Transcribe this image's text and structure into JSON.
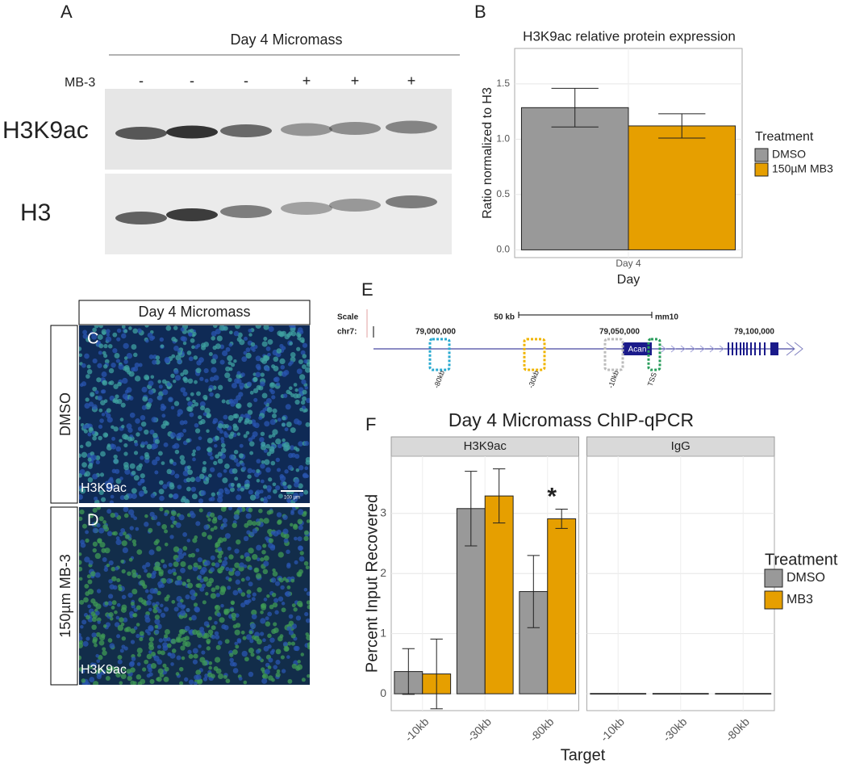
{
  "panel_labels": [
    "A",
    "B",
    "C",
    "D",
    "E",
    "F"
  ],
  "blot": {
    "title": "Day 4 Micromass",
    "treatment_label": "MB-3",
    "lanes": [
      "-",
      "-",
      "-",
      "+",
      "+",
      "+"
    ],
    "bands": [
      "H3K9ac",
      "H3"
    ]
  },
  "imaging": {
    "title": "Day 4 Micromass",
    "scale_bar": "100 µm",
    "rows": [
      {
        "condition": "DMSO",
        "stain": "H3K9ac"
      },
      {
        "condition": "150µm MB-3",
        "stain": "H3K9ac"
      }
    ]
  },
  "browser": {
    "scale_label": "Scale",
    "scale": "50 kb",
    "assembly": "mm10",
    "chrom": "chr7:",
    "positions": [
      "79,000,000",
      "79,050,000",
      "79,100,000"
    ],
    "gene": "Acan",
    "regions": [
      "-80kb",
      "-30kb",
      "-10kb",
      "TSS"
    ]
  },
  "chart_data": [
    {
      "type": "bar",
      "title": "H3K9ac relative protein expression",
      "x_label": "Day",
      "y_label": "Ratio normalized to H3",
      "legend_title": "Treatment",
      "categories": [
        "Day 4"
      ],
      "series": [
        {
          "name": "DMSO",
          "color": "#999999",
          "values": [
            1.285
          ],
          "errors": [
            0.175
          ]
        },
        {
          "name": "150µM MB3",
          "color": "#e69f00",
          "values": [
            1.12
          ],
          "errors": [
            0.11
          ]
        }
      ],
      "ylim": [
        -0.07,
        1.82
      ],
      "yticks": [
        {
          "value": 0,
          "label": "0.0"
        },
        0.5,
        {
          "value": 1,
          "label": "1.0"
        },
        1.5
      ],
      "grid": true
    },
    {
      "type": "bar",
      "title": "Day 4 Micromass ChIP-qPCR",
      "x_label": "Target",
      "y_label": "Percent Input Recovered",
      "legend_title": "Treatment",
      "facets": [
        "H3K9ac",
        "IgG"
      ],
      "categories": [
        "-10kb",
        "-30kb",
        "-80kb"
      ],
      "series": [
        {
          "name": "DMSO",
          "color": "#999999",
          "values": [
            [
              0.37,
              3.08,
              1.7
            ],
            [
              0,
              0,
              0
            ]
          ],
          "errors": [
            [
              0.38,
              0.62,
              0.6
            ],
            [
              null,
              null,
              null
            ]
          ]
        },
        {
          "name": "MB3",
          "color": "#e69f00",
          "values": [
            [
              0.33,
              3.29,
              2.91
            ],
            [
              0,
              0,
              0
            ]
          ],
          "errors": [
            [
              0.58,
              0.45,
              0.16
            ],
            [
              null,
              null,
              null
            ]
          ]
        }
      ],
      "annotation": "*",
      "ylim": [
        -0.28,
        3.95
      ],
      "yticks": [
        0,
        1,
        2,
        3
      ],
      "grid": true
    }
  ]
}
